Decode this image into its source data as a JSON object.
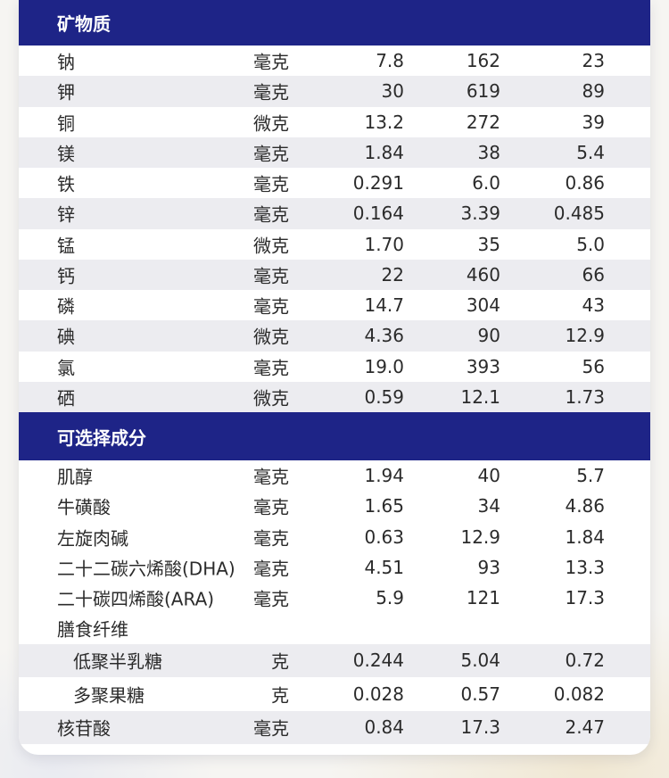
{
  "minerals": {
    "title": "矿物质",
    "rows": [
      {
        "name": "钠",
        "unit": "毫克",
        "v1": "7.8",
        "v2": "162",
        "v3": "23"
      },
      {
        "name": "钾",
        "unit": "毫克",
        "v1": "30",
        "v2": "619",
        "v3": "89"
      },
      {
        "name": "铜",
        "unit": "微克",
        "v1": "13.2",
        "v2": "272",
        "v3": "39"
      },
      {
        "name": "镁",
        "unit": "毫克",
        "v1": "1.84",
        "v2": "38",
        "v3": "5.4"
      },
      {
        "name": "铁",
        "unit": "毫克",
        "v1": "0.291",
        "v2": "6.0",
        "v3": "0.86"
      },
      {
        "name": "锌",
        "unit": "毫克",
        "v1": "0.164",
        "v2": "3.39",
        "v3": "0.485"
      },
      {
        "name": "锰",
        "unit": "微克",
        "v1": "1.70",
        "v2": "35",
        "v3": "5.0"
      },
      {
        "name": "钙",
        "unit": "毫克",
        "v1": "22",
        "v2": "460",
        "v3": "66"
      },
      {
        "name": "磷",
        "unit": "毫克",
        "v1": "14.7",
        "v2": "304",
        "v3": "43"
      },
      {
        "name": "碘",
        "unit": "微克",
        "v1": "4.36",
        "v2": "90",
        "v3": "12.9"
      },
      {
        "name": "氯",
        "unit": "毫克",
        "v1": "19.0",
        "v2": "393",
        "v3": "56"
      },
      {
        "name": "硒",
        "unit": "微克",
        "v1": "0.59",
        "v2": "12.1",
        "v3": "1.73"
      }
    ]
  },
  "optional": {
    "title": "可选择成分",
    "rows": [
      {
        "name": "肌醇",
        "unit": "毫克",
        "v1": "1.94",
        "v2": "40",
        "v3": "5.7"
      },
      {
        "name": "牛磺酸",
        "unit": "毫克",
        "v1": "1.65",
        "v2": "34",
        "v3": "4.86"
      },
      {
        "name": "左旋肉碱",
        "unit": "毫克",
        "v1": "0.63",
        "v2": "12.9",
        "v3": "1.84"
      },
      {
        "name": "二十二碳六烯酸(DHA)",
        "unit": "毫克",
        "v1": "4.51",
        "v2": "93",
        "v3": "13.3"
      },
      {
        "name": "二十碳四烯酸(ARA)",
        "unit": "毫克",
        "v1": "5.9",
        "v2": "121",
        "v3": "17.3"
      },
      {
        "name": "膳食纤维",
        "unit": "",
        "v1": "",
        "v2": "",
        "v3": ""
      },
      {
        "name": "低聚半乳糖",
        "unit": "克",
        "v1": "0.244",
        "v2": "5.04",
        "v3": "0.72"
      },
      {
        "name": "多聚果糖",
        "unit": "克",
        "v1": "0.028",
        "v2": "0.57",
        "v3": "0.082"
      },
      {
        "name": "核苷酸",
        "unit": "毫克",
        "v1": "0.84",
        "v2": "17.3",
        "v3": "2.47"
      }
    ]
  }
}
